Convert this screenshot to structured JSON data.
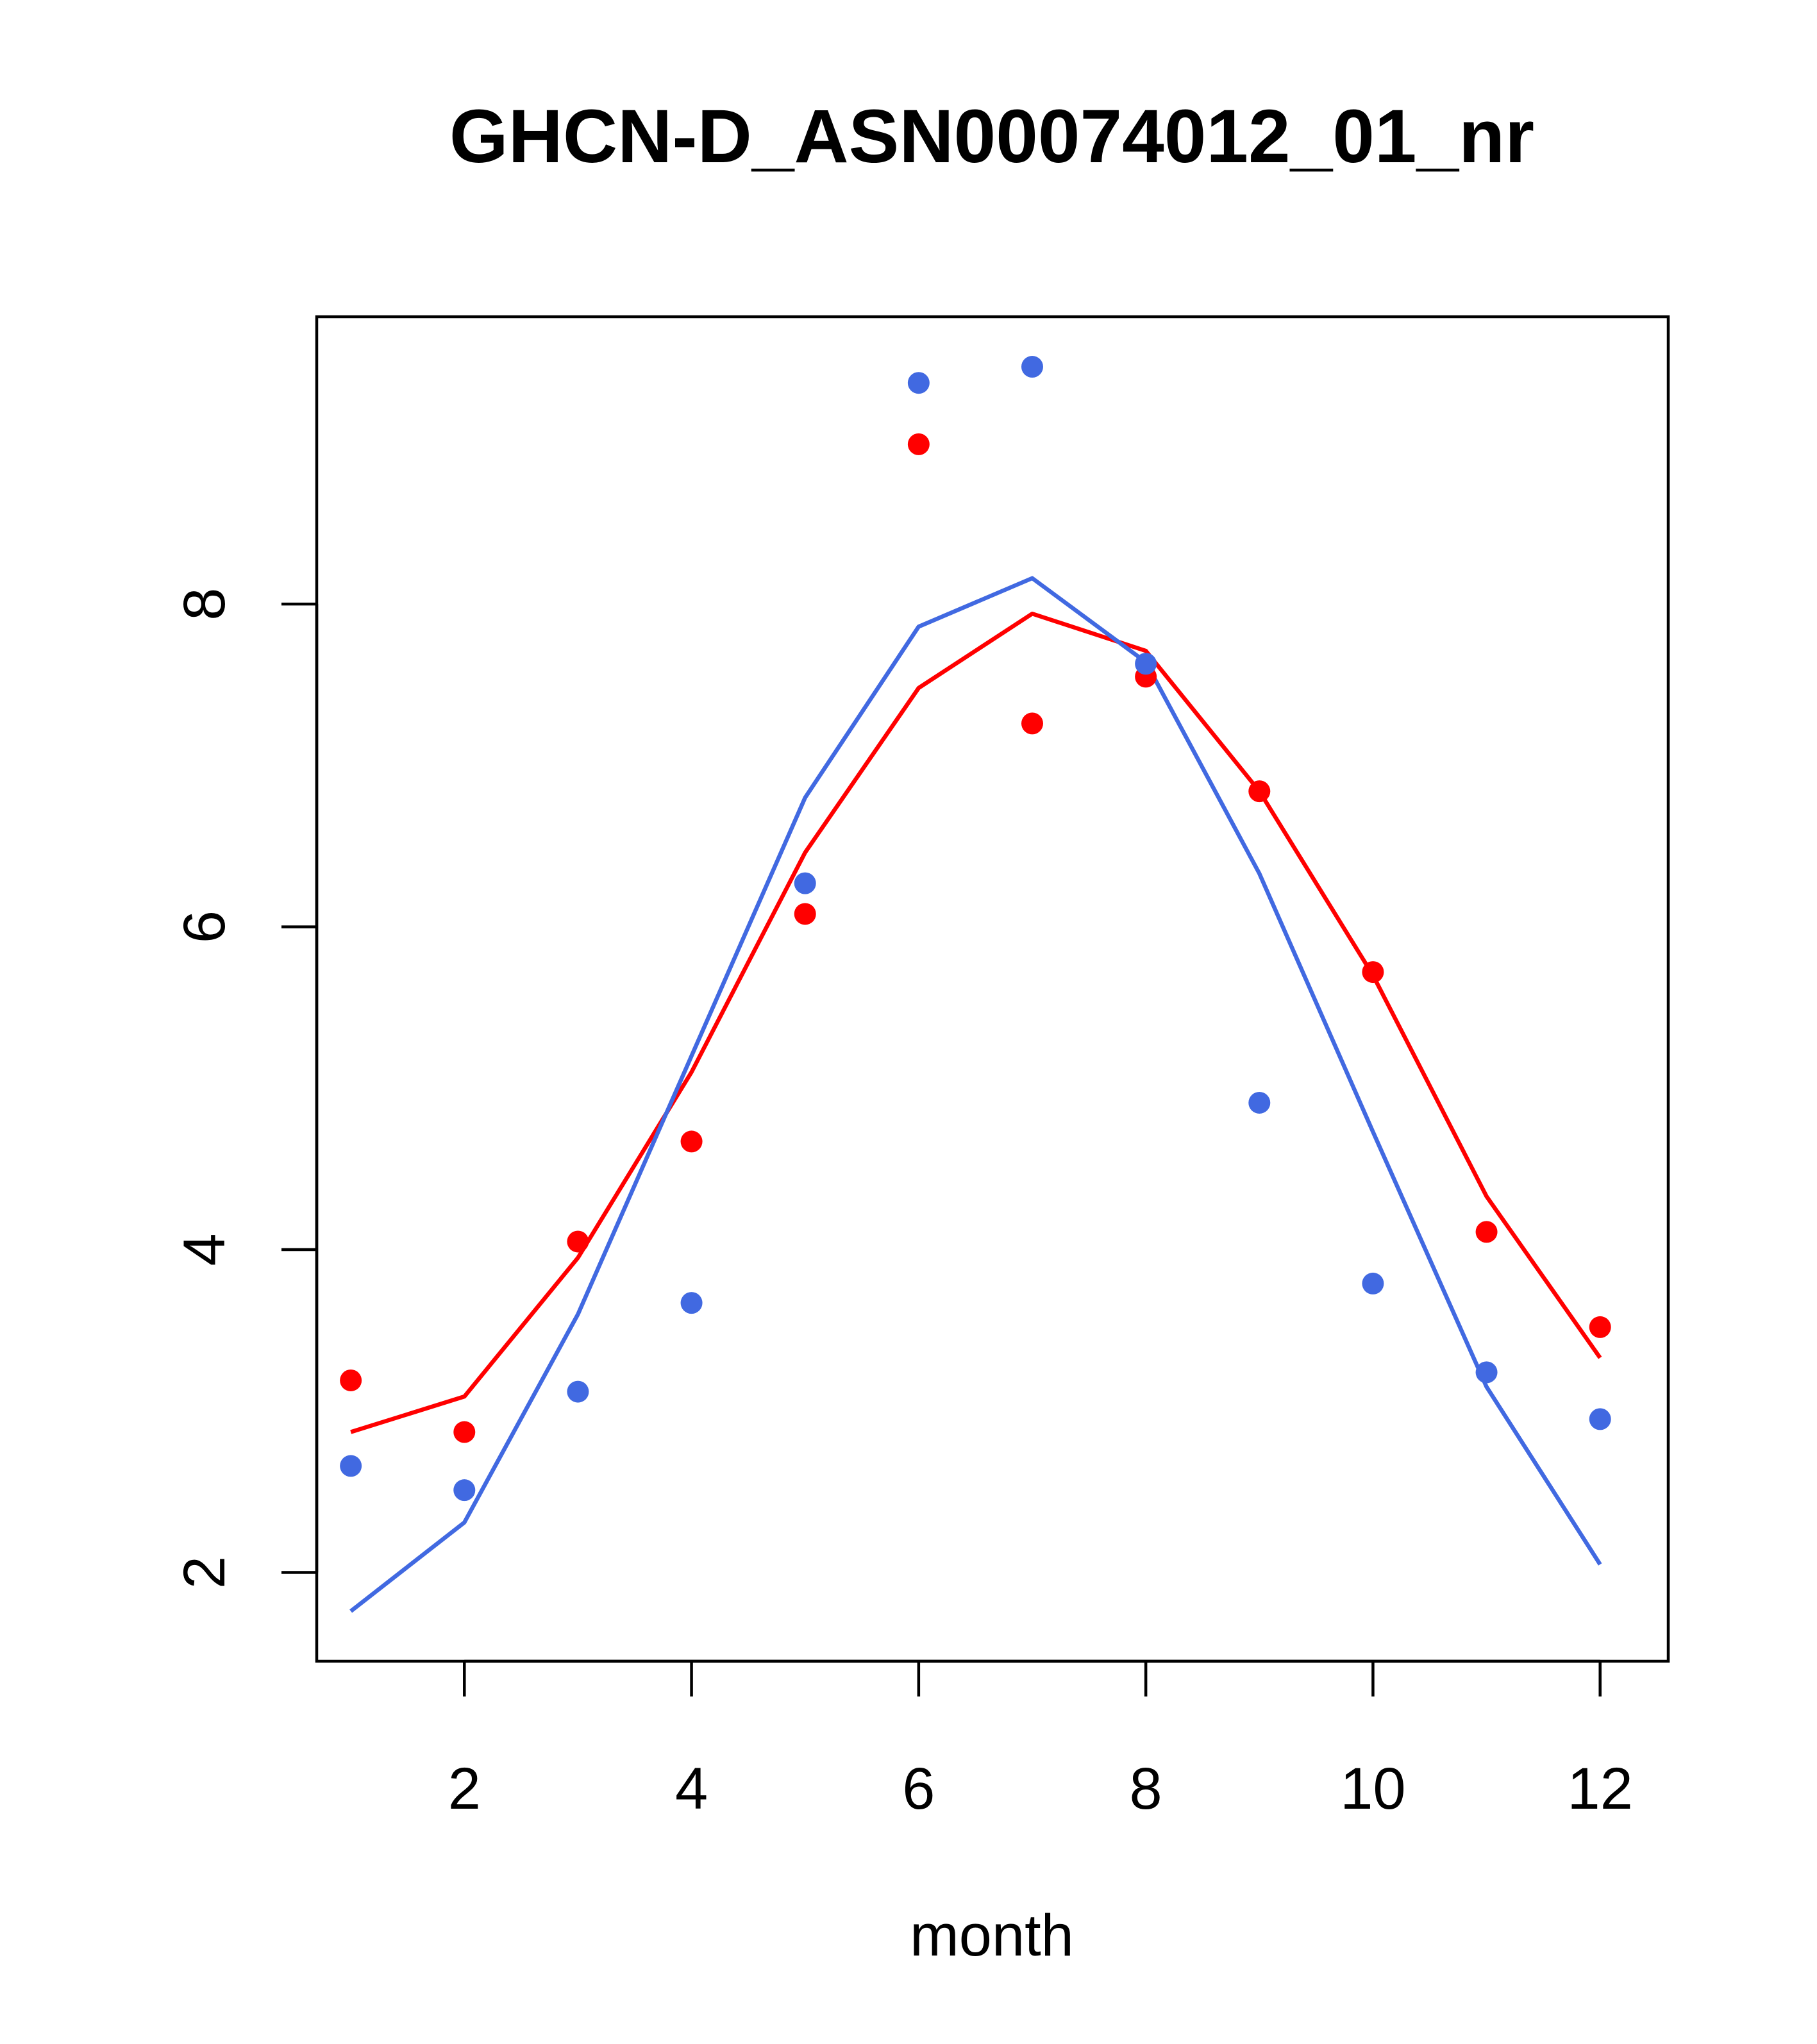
{
  "chart_data": {
    "type": "scatter",
    "title": "GHCN-D_ASN00074012_01_nr",
    "xlabel": "month",
    "ylabel": "",
    "xlim": [
      0.7,
      12.6
    ],
    "ylim": [
      1.45,
      9.78
    ],
    "x_ticks": [
      2,
      4,
      6,
      8,
      10,
      12
    ],
    "y_ticks": [
      2,
      4,
      6,
      8
    ],
    "x": [
      1,
      2,
      3,
      4,
      5,
      6,
      7,
      8,
      9,
      10,
      11,
      12
    ],
    "series": [
      {
        "color": "#ff0000",
        "points": [
          3.19,
          2.87,
          4.05,
          4.67,
          6.08,
          8.99,
          7.26,
          7.55,
          6.84,
          5.72,
          4.11,
          3.52
        ],
        "line": [
          2.87,
          3.09,
          3.95,
          5.1,
          6.46,
          7.48,
          7.94,
          7.71,
          6.84,
          5.7,
          4.33,
          3.33
        ]
      },
      {
        "color": "#4169e1",
        "points": [
          2.66,
          2.51,
          3.12,
          3.67,
          6.27,
          9.37,
          9.47,
          7.63,
          4.91,
          3.79,
          3.24,
          2.95
        ],
        "line": [
          1.76,
          2.31,
          3.6,
          5.2,
          6.8,
          7.86,
          8.16,
          7.64,
          6.33,
          4.73,
          3.15,
          2.05
        ]
      }
    ]
  }
}
